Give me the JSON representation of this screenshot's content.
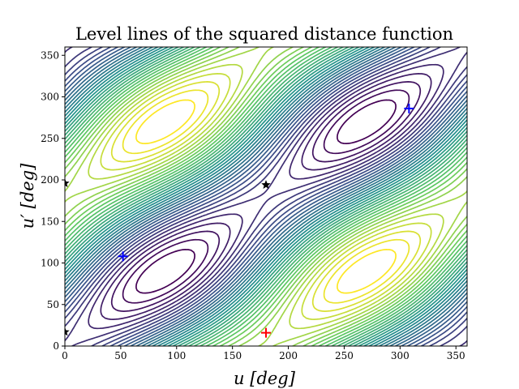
{
  "chart_data": {
    "type": "contour",
    "title": "Level lines of the squared distance function",
    "xlabel": "u [deg]",
    "ylabel": "u′ [deg]",
    "xlim": [
      0,
      360
    ],
    "ylim": [
      0,
      360
    ],
    "xticks": [
      "0",
      "50",
      "100",
      "150",
      "200",
      "250",
      "300",
      "350"
    ],
    "yticks": [
      "0",
      "50",
      "100",
      "150",
      "200",
      "250",
      "300",
      "350"
    ],
    "colormap": [
      "#440154",
      "#3b528b",
      "#21918c",
      "#5ec962",
      "#fde725"
    ],
    "grid": false,
    "markers": {
      "minima": [
        {
          "x": 52,
          "y": 108,
          "marker": "+",
          "color": "#0000ff"
        },
        {
          "x": 308,
          "y": 286,
          "marker": "+",
          "color": "#0000ff"
        }
      ],
      "maxima": [
        {
          "x": 180,
          "y": 16,
          "marker": "+",
          "color": "#ff0000"
        }
      ],
      "saddles": [
        {
          "x": 180,
          "y": 194,
          "marker": "*",
          "color": "#000000"
        },
        {
          "x": 0,
          "y": 196,
          "marker": "*",
          "color": "#000000"
        },
        {
          "x": 0,
          "y": 17,
          "marker": "*",
          "color": "#000000"
        }
      ]
    }
  }
}
